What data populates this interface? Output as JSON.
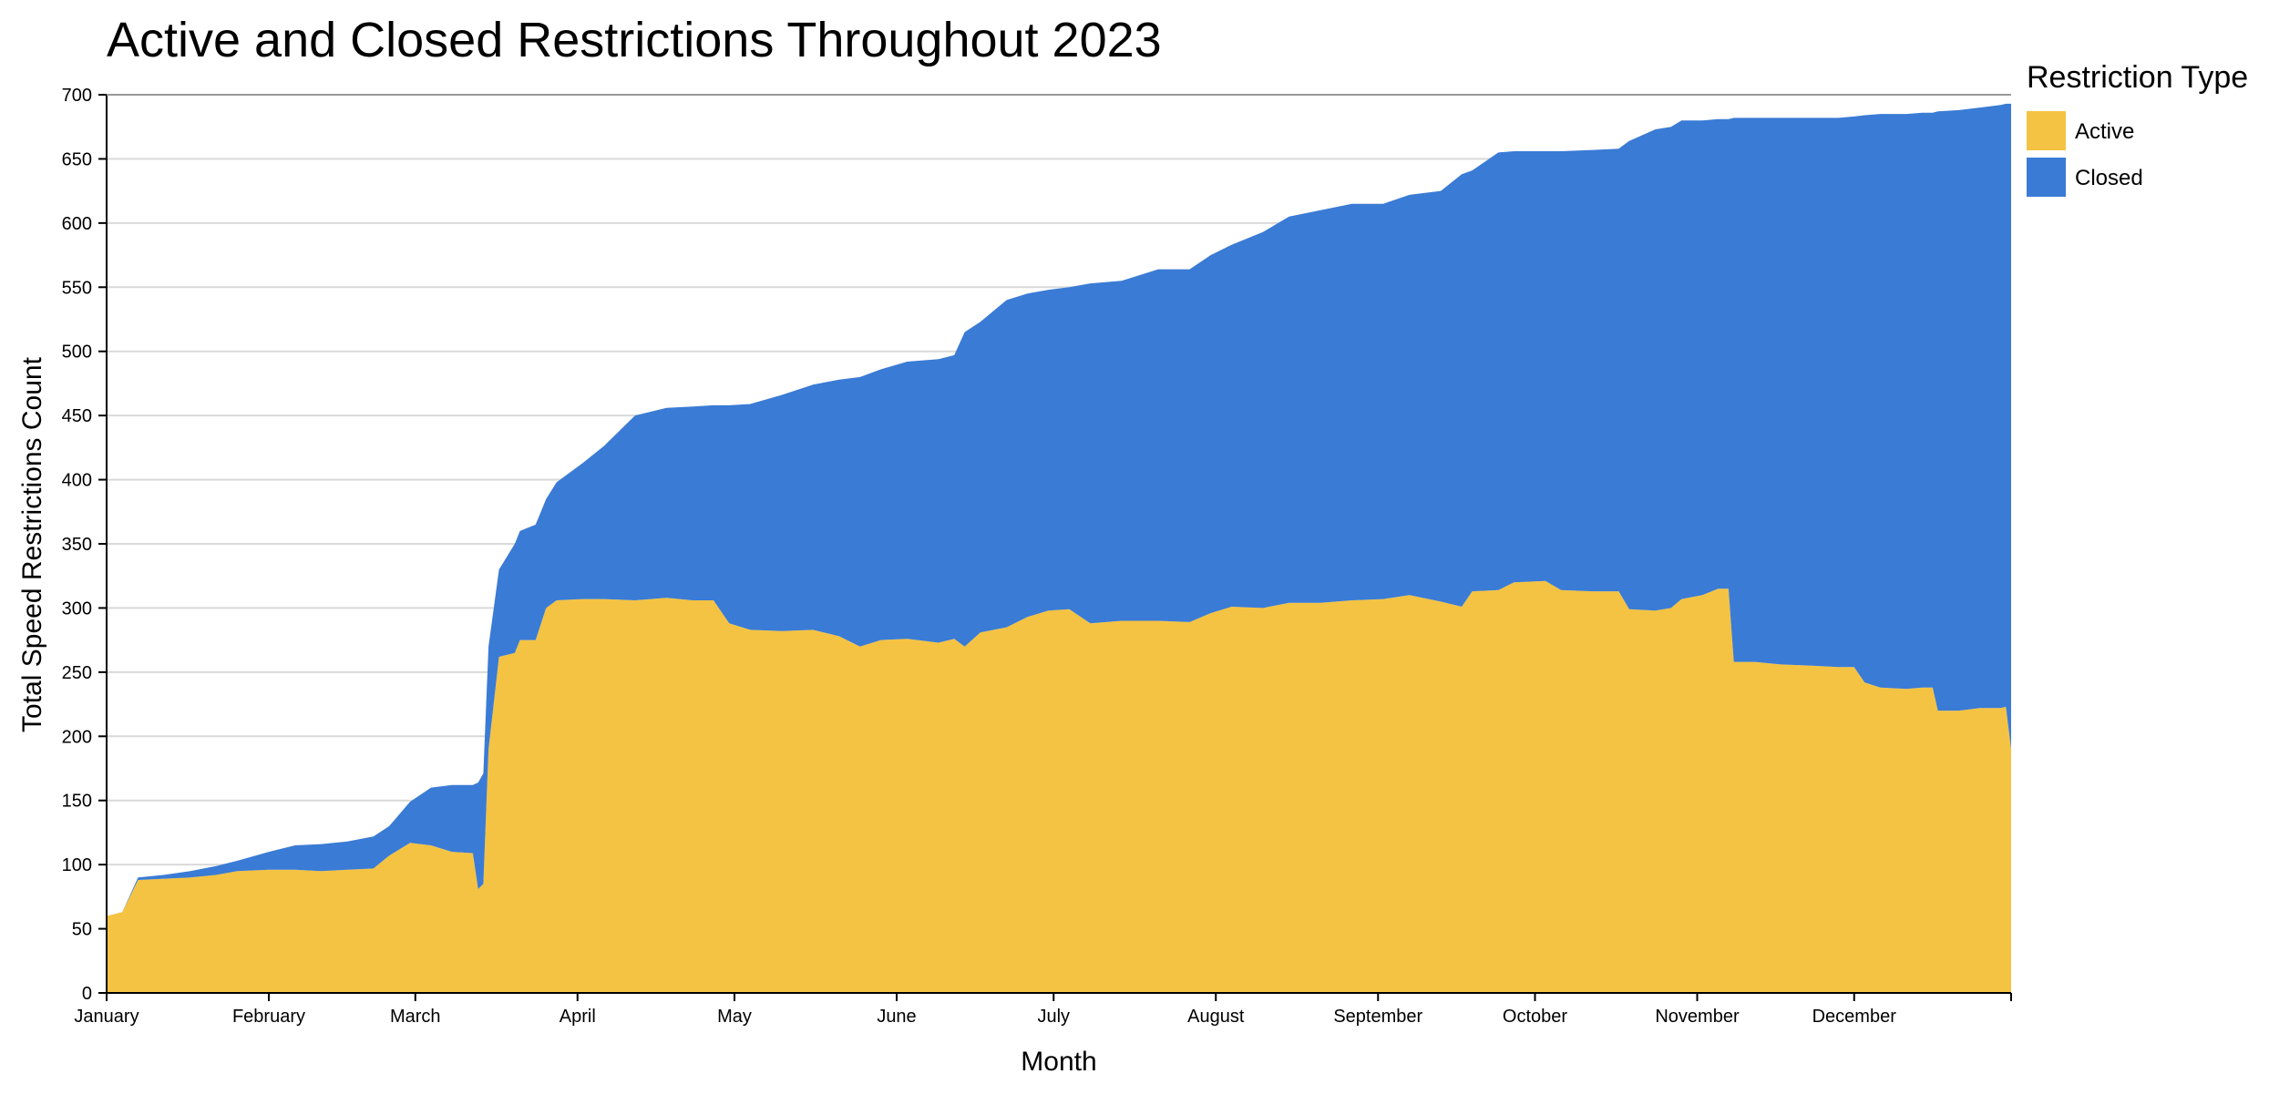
{
  "chart_data": {
    "type": "area",
    "stacked": true,
    "title": "Active and Closed Restrictions Throughout 2023",
    "xlabel": "Month",
    "ylabel": "Total Speed Restrictions Count",
    "ylim": [
      0,
      700
    ],
    "yticks": [
      0,
      50,
      100,
      150,
      200,
      250,
      300,
      350,
      400,
      450,
      500,
      550,
      600,
      650,
      700
    ],
    "xlim": [
      "2023-01-01",
      "2023-12-31"
    ],
    "xticks": [
      {
        "date": "2023-01-01",
        "label": "January"
      },
      {
        "date": "2023-02-01",
        "label": "February"
      },
      {
        "date": "2023-03-01",
        "label": "March"
      },
      {
        "date": "2023-04-01",
        "label": "April"
      },
      {
        "date": "2023-05-01",
        "label": "May"
      },
      {
        "date": "2023-06-01",
        "label": "June"
      },
      {
        "date": "2023-07-01",
        "label": "July"
      },
      {
        "date": "2023-08-01",
        "label": "August"
      },
      {
        "date": "2023-09-01",
        "label": "September"
      },
      {
        "date": "2023-10-01",
        "label": "October"
      },
      {
        "date": "2023-11-01",
        "label": "November"
      },
      {
        "date": "2023-12-01",
        "label": "December"
      }
    ],
    "grid": true,
    "legend": {
      "title": "Restriction Type",
      "position": "top-right"
    },
    "series": [
      {
        "name": "Active",
        "color": "#f4c343",
        "points": [
          [
            "2023-01-01",
            60
          ],
          [
            "2023-01-04",
            63
          ],
          [
            "2023-01-07",
            88
          ],
          [
            "2023-01-12",
            89
          ],
          [
            "2023-01-17",
            90
          ],
          [
            "2023-01-22",
            92
          ],
          [
            "2023-01-26",
            95
          ],
          [
            "2023-02-01",
            96
          ],
          [
            "2023-02-06",
            96
          ],
          [
            "2023-02-11",
            95
          ],
          [
            "2023-02-16",
            96
          ],
          [
            "2023-02-21",
            97
          ],
          [
            "2023-02-24",
            107
          ],
          [
            "2023-02-28",
            117
          ],
          [
            "2023-03-04",
            115
          ],
          [
            "2023-03-08",
            110
          ],
          [
            "2023-03-12",
            109
          ],
          [
            "2023-03-13",
            81
          ],
          [
            "2023-03-14",
            85
          ],
          [
            "2023-03-15",
            190
          ],
          [
            "2023-03-17",
            262
          ],
          [
            "2023-03-20",
            265
          ],
          [
            "2023-03-21",
            275
          ],
          [
            "2023-03-24",
            275
          ],
          [
            "2023-03-26",
            300
          ],
          [
            "2023-03-28",
            306
          ],
          [
            "2023-04-02",
            307
          ],
          [
            "2023-04-06",
            307
          ],
          [
            "2023-04-12",
            306
          ],
          [
            "2023-04-18",
            308
          ],
          [
            "2023-04-23",
            306
          ],
          [
            "2023-04-27",
            306
          ],
          [
            "2023-04-30",
            288
          ],
          [
            "2023-05-04",
            283
          ],
          [
            "2023-05-10",
            282
          ],
          [
            "2023-05-16",
            283
          ],
          [
            "2023-05-21",
            278
          ],
          [
            "2023-05-25",
            270
          ],
          [
            "2023-05-29",
            275
          ],
          [
            "2023-06-03",
            276
          ],
          [
            "2023-06-09",
            273
          ],
          [
            "2023-06-12",
            276
          ],
          [
            "2023-06-14",
            270
          ],
          [
            "2023-06-17",
            281
          ],
          [
            "2023-06-22",
            285
          ],
          [
            "2023-06-26",
            293
          ],
          [
            "2023-06-30",
            298
          ],
          [
            "2023-07-04",
            299
          ],
          [
            "2023-07-08",
            288
          ],
          [
            "2023-07-14",
            290
          ],
          [
            "2023-07-21",
            290
          ],
          [
            "2023-07-27",
            289
          ],
          [
            "2023-07-31",
            296
          ],
          [
            "2023-08-04",
            301
          ],
          [
            "2023-08-10",
            300
          ],
          [
            "2023-08-15",
            304
          ],
          [
            "2023-08-21",
            304
          ],
          [
            "2023-08-27",
            306
          ],
          [
            "2023-09-02",
            307
          ],
          [
            "2023-09-07",
            310
          ],
          [
            "2023-09-13",
            305
          ],
          [
            "2023-09-17",
            301
          ],
          [
            "2023-09-19",
            313
          ],
          [
            "2023-09-24",
            314
          ],
          [
            "2023-09-27",
            320
          ],
          [
            "2023-10-03",
            321
          ],
          [
            "2023-10-06",
            314
          ],
          [
            "2023-10-12",
            313
          ],
          [
            "2023-10-17",
            313
          ],
          [
            "2023-10-19",
            299
          ],
          [
            "2023-10-24",
            298
          ],
          [
            "2023-10-27",
            300
          ],
          [
            "2023-10-29",
            307
          ],
          [
            "2023-11-02",
            310
          ],
          [
            "2023-11-05",
            315
          ],
          [
            "2023-11-07",
            315
          ],
          [
            "2023-11-08",
            258
          ],
          [
            "2023-11-12",
            258
          ],
          [
            "2023-11-17",
            256
          ],
          [
            "2023-11-23",
            255
          ],
          [
            "2023-11-28",
            254
          ],
          [
            "2023-12-01",
            254
          ],
          [
            "2023-12-03",
            242
          ],
          [
            "2023-12-06",
            238
          ],
          [
            "2023-12-11",
            237
          ],
          [
            "2023-12-14",
            238
          ],
          [
            "2023-12-16",
            238
          ],
          [
            "2023-12-17",
            220
          ],
          [
            "2023-12-21",
            220
          ],
          [
            "2023-12-25",
            222
          ],
          [
            "2023-12-29",
            222
          ],
          [
            "2023-12-30",
            223
          ],
          [
            "2024-01-01",
            190
          ],
          [
            "2024-01-02",
            185
          ],
          [
            "2024-01-06",
            185
          ],
          [
            "2024-01-08",
            182
          ],
          [
            "2024-01-12",
            182
          ]
        ]
      },
      {
        "name": "Closed",
        "color": "#3a7bd5",
        "points": [
          [
            "2023-01-01",
            0
          ],
          [
            "2023-01-04",
            0
          ],
          [
            "2023-01-07",
            2
          ],
          [
            "2023-01-12",
            3
          ],
          [
            "2023-01-17",
            5
          ],
          [
            "2023-01-22",
            7
          ],
          [
            "2023-01-26",
            8
          ],
          [
            "2023-02-01",
            14
          ],
          [
            "2023-02-06",
            19
          ],
          [
            "2023-02-11",
            21
          ],
          [
            "2023-02-16",
            22
          ],
          [
            "2023-02-21",
            25
          ],
          [
            "2023-02-24",
            23
          ],
          [
            "2023-02-28",
            32
          ],
          [
            "2023-03-04",
            45
          ],
          [
            "2023-03-08",
            52
          ],
          [
            "2023-03-12",
            53
          ],
          [
            "2023-03-13",
            83
          ],
          [
            "2023-03-14",
            86
          ],
          [
            "2023-03-15",
            80
          ],
          [
            "2023-03-17",
            68
          ],
          [
            "2023-03-20",
            85
          ],
          [
            "2023-03-21",
            85
          ],
          [
            "2023-03-24",
            90
          ],
          [
            "2023-03-26",
            85
          ],
          [
            "2023-03-28",
            92
          ],
          [
            "2023-04-02",
            106
          ],
          [
            "2023-04-06",
            119
          ],
          [
            "2023-04-12",
            144
          ],
          [
            "2023-04-18",
            148
          ],
          [
            "2023-04-23",
            151
          ],
          [
            "2023-04-27",
            152
          ],
          [
            "2023-04-30",
            170
          ],
          [
            "2023-05-04",
            176
          ],
          [
            "2023-05-10",
            184
          ],
          [
            "2023-05-16",
            191
          ],
          [
            "2023-05-21",
            200
          ],
          [
            "2023-05-25",
            210
          ],
          [
            "2023-05-29",
            211
          ],
          [
            "2023-06-03",
            216
          ],
          [
            "2023-06-09",
            221
          ],
          [
            "2023-06-12",
            221
          ],
          [
            "2023-06-14",
            245
          ],
          [
            "2023-06-17",
            242
          ],
          [
            "2023-06-22",
            255
          ],
          [
            "2023-06-26",
            252
          ],
          [
            "2023-06-30",
            250
          ],
          [
            "2023-07-04",
            251
          ],
          [
            "2023-07-08",
            265
          ],
          [
            "2023-07-14",
            265
          ],
          [
            "2023-07-21",
            274
          ],
          [
            "2023-07-27",
            275
          ],
          [
            "2023-07-31",
            279
          ],
          [
            "2023-08-04",
            282
          ],
          [
            "2023-08-10",
            293
          ],
          [
            "2023-08-15",
            301
          ],
          [
            "2023-08-21",
            306
          ],
          [
            "2023-08-27",
            309
          ],
          [
            "2023-09-02",
            308
          ],
          [
            "2023-09-07",
            312
          ],
          [
            "2023-09-13",
            320
          ],
          [
            "2023-09-17",
            337
          ],
          [
            "2023-09-19",
            328
          ],
          [
            "2023-09-24",
            341
          ],
          [
            "2023-09-27",
            336
          ],
          [
            "2023-10-03",
            335
          ],
          [
            "2023-10-06",
            342
          ],
          [
            "2023-10-12",
            344
          ],
          [
            "2023-10-17",
            345
          ],
          [
            "2023-10-19",
            365
          ],
          [
            "2023-10-24",
            375
          ],
          [
            "2023-10-27",
            375
          ],
          [
            "2023-10-29",
            373
          ],
          [
            "2023-11-02",
            370
          ],
          [
            "2023-11-05",
            366
          ],
          [
            "2023-11-07",
            366
          ],
          [
            "2023-11-08",
            424
          ],
          [
            "2023-11-12",
            424
          ],
          [
            "2023-11-17",
            426
          ],
          [
            "2023-11-23",
            427
          ],
          [
            "2023-11-28",
            428
          ],
          [
            "2023-12-01",
            429
          ],
          [
            "2023-12-03",
            442
          ],
          [
            "2023-12-06",
            447
          ],
          [
            "2023-12-11",
            448
          ],
          [
            "2023-12-14",
            448
          ],
          [
            "2023-12-16",
            448
          ],
          [
            "2023-12-17",
            467
          ],
          [
            "2023-12-21",
            468
          ],
          [
            "2023-12-25",
            468
          ],
          [
            "2023-12-29",
            470
          ],
          [
            "2023-12-30",
            470
          ],
          [
            "2024-01-01",
            503
          ],
          [
            "2024-01-02",
            508
          ],
          [
            "2024-01-06",
            508
          ],
          [
            "2024-01-08",
            511
          ],
          [
            "2024-01-12",
            511
          ]
        ]
      }
    ]
  }
}
